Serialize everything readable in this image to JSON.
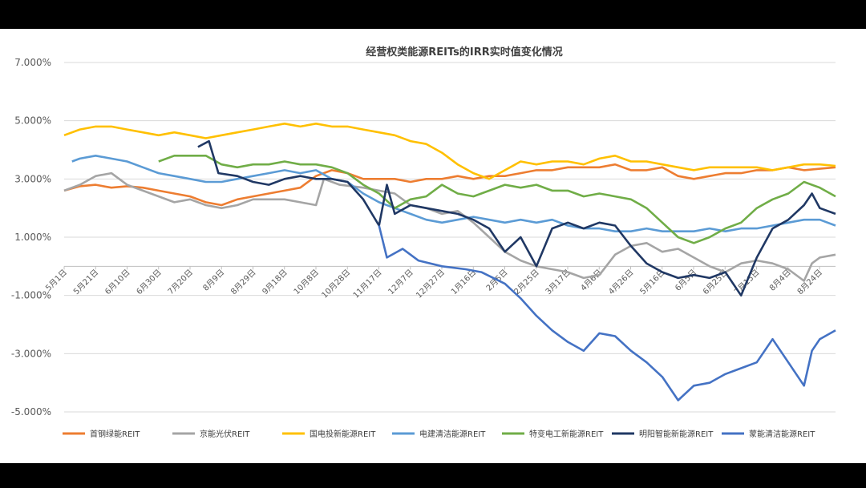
{
  "chart_data": {
    "type": "line",
    "title": "经营权类能源REITs的IRR实时值变化情况",
    "y_ticks": [
      "7.000%",
      "5.000%",
      "3.000%",
      "1.000%",
      "-1.000%",
      "-3.000%",
      "-5.000%"
    ],
    "ylim": [
      -5,
      7
    ],
    "x_ticks": [
      "5月1日",
      "5月21日",
      "6月10日",
      "6月30日",
      "7月20日",
      "8月9日",
      "8月29日",
      "9月18日",
      "10月8日",
      "10月28日",
      "11月17日",
      "12月7日",
      "12月27日",
      "1月16日",
      "2月5日",
      "2月25日",
      "3月17日",
      "4月6日",
      "4月26日",
      "5月16日",
      "6月5日",
      "6月25日",
      "7月15日",
      "8月4日",
      "8月24日"
    ],
    "x_range": [
      0,
      490
    ],
    "legend_position": "bottom",
    "series": [
      {
        "name": "首钢绿能REIT",
        "color": "#ED7D31",
        "points": [
          [
            0,
            2.6
          ],
          [
            10,
            2.75
          ],
          [
            20,
            2.8
          ],
          [
            30,
            2.7
          ],
          [
            40,
            2.75
          ],
          [
            50,
            2.7
          ],
          [
            60,
            2.6
          ],
          [
            70,
            2.5
          ],
          [
            80,
            2.4
          ],
          [
            90,
            2.2
          ],
          [
            100,
            2.1
          ],
          [
            110,
            2.3
          ],
          [
            120,
            2.4
          ],
          [
            130,
            2.5
          ],
          [
            140,
            2.6
          ],
          [
            150,
            2.7
          ],
          [
            160,
            3.1
          ],
          [
            170,
            3.3
          ],
          [
            180,
            3.2
          ],
          [
            190,
            3.0
          ],
          [
            200,
            3.0
          ],
          [
            210,
            3.0
          ],
          [
            220,
            2.9
          ],
          [
            230,
            3.0
          ],
          [
            240,
            3.0
          ],
          [
            250,
            3.1
          ],
          [
            260,
            3.0
          ],
          [
            270,
            3.1
          ],
          [
            280,
            3.1
          ],
          [
            290,
            3.2
          ],
          [
            300,
            3.3
          ],
          [
            310,
            3.3
          ],
          [
            320,
            3.4
          ],
          [
            330,
            3.4
          ],
          [
            340,
            3.4
          ],
          [
            350,
            3.5
          ],
          [
            360,
            3.3
          ],
          [
            370,
            3.3
          ],
          [
            380,
            3.4
          ],
          [
            390,
            3.1
          ],
          [
            400,
            3.0
          ],
          [
            410,
            3.1
          ],
          [
            420,
            3.2
          ],
          [
            430,
            3.2
          ],
          [
            440,
            3.3
          ],
          [
            450,
            3.3
          ],
          [
            460,
            3.4
          ],
          [
            470,
            3.3
          ],
          [
            480,
            3.35
          ],
          [
            490,
            3.4
          ]
        ]
      },
      {
        "name": "京能光伏REIT",
        "color": "#A5A5A5",
        "points": [
          [
            0,
            2.6
          ],
          [
            10,
            2.8
          ],
          [
            20,
            3.1
          ],
          [
            30,
            3.2
          ],
          [
            40,
            2.8
          ],
          [
            50,
            2.6
          ],
          [
            60,
            2.4
          ],
          [
            70,
            2.2
          ],
          [
            80,
            2.3
          ],
          [
            90,
            2.1
          ],
          [
            100,
            2.0
          ],
          [
            110,
            2.1
          ],
          [
            120,
            2.3
          ],
          [
            130,
            2.3
          ],
          [
            140,
            2.3
          ],
          [
            150,
            2.2
          ],
          [
            160,
            2.1
          ],
          [
            165,
            3.0
          ],
          [
            175,
            2.8
          ],
          [
            190,
            2.7
          ],
          [
            200,
            2.6
          ],
          [
            210,
            2.5
          ],
          [
            220,
            2.1
          ],
          [
            230,
            2.0
          ],
          [
            240,
            1.8
          ],
          [
            250,
            1.9
          ],
          [
            260,
            1.5
          ],
          [
            270,
            1.0
          ],
          [
            280,
            0.5
          ],
          [
            290,
            0.2
          ],
          [
            300,
            0.0
          ],
          [
            310,
            -0.1
          ],
          [
            320,
            -0.2
          ],
          [
            330,
            -0.4
          ],
          [
            340,
            -0.3
          ],
          [
            350,
            0.4
          ],
          [
            360,
            0.7
          ],
          [
            370,
            0.8
          ],
          [
            380,
            0.5
          ],
          [
            390,
            0.6
          ],
          [
            400,
            0.3
          ],
          [
            410,
            0.0
          ],
          [
            420,
            -0.2
          ],
          [
            430,
            0.1
          ],
          [
            440,
            0.2
          ],
          [
            450,
            0.1
          ],
          [
            460,
            -0.1
          ],
          [
            470,
            -0.5
          ],
          [
            475,
            0.1
          ],
          [
            480,
            0.3
          ],
          [
            490,
            0.4
          ]
        ]
      },
      {
        "name": "国电投新能源REIT",
        "color": "#FFC000",
        "points": [
          [
            0,
            4.5
          ],
          [
            10,
            4.7
          ],
          [
            20,
            4.8
          ],
          [
            30,
            4.8
          ],
          [
            40,
            4.7
          ],
          [
            50,
            4.6
          ],
          [
            60,
            4.5
          ],
          [
            70,
            4.6
          ],
          [
            80,
            4.5
          ],
          [
            90,
            4.4
          ],
          [
            100,
            4.5
          ],
          [
            110,
            4.6
          ],
          [
            120,
            4.7
          ],
          [
            130,
            4.8
          ],
          [
            140,
            4.9
          ],
          [
            150,
            4.8
          ],
          [
            160,
            4.9
          ],
          [
            170,
            4.8
          ],
          [
            180,
            4.8
          ],
          [
            190,
            4.7
          ],
          [
            200,
            4.6
          ],
          [
            210,
            4.5
          ],
          [
            220,
            4.3
          ],
          [
            230,
            4.2
          ],
          [
            240,
            3.9
          ],
          [
            250,
            3.5
          ],
          [
            260,
            3.2
          ],
          [
            270,
            3.0
          ],
          [
            280,
            3.3
          ],
          [
            290,
            3.6
          ],
          [
            300,
            3.5
          ],
          [
            310,
            3.6
          ],
          [
            320,
            3.6
          ],
          [
            330,
            3.5
          ],
          [
            340,
            3.7
          ],
          [
            350,
            3.8
          ],
          [
            360,
            3.6
          ],
          [
            370,
            3.6
          ],
          [
            380,
            3.5
          ],
          [
            390,
            3.4
          ],
          [
            400,
            3.3
          ],
          [
            410,
            3.4
          ],
          [
            420,
            3.4
          ],
          [
            430,
            3.4
          ],
          [
            440,
            3.4
          ],
          [
            450,
            3.3
          ],
          [
            460,
            3.4
          ],
          [
            470,
            3.5
          ],
          [
            480,
            3.5
          ],
          [
            490,
            3.45
          ]
        ]
      },
      {
        "name": "电建清洁能源REIT",
        "color": "#5B9BD5",
        "points": [
          [
            5,
            3.6
          ],
          [
            10,
            3.7
          ],
          [
            20,
            3.8
          ],
          [
            30,
            3.7
          ],
          [
            40,
            3.6
          ],
          [
            50,
            3.4
          ],
          [
            60,
            3.2
          ],
          [
            70,
            3.1
          ],
          [
            80,
            3.0
          ],
          [
            90,
            2.9
          ],
          [
            100,
            2.9
          ],
          [
            110,
            3.0
          ],
          [
            120,
            3.1
          ],
          [
            130,
            3.2
          ],
          [
            140,
            3.3
          ],
          [
            150,
            3.2
          ],
          [
            160,
            3.3
          ],
          [
            170,
            3.0
          ],
          [
            180,
            2.9
          ],
          [
            190,
            2.5
          ],
          [
            200,
            2.2
          ],
          [
            210,
            2.0
          ],
          [
            220,
            1.8
          ],
          [
            230,
            1.6
          ],
          [
            240,
            1.5
          ],
          [
            250,
            1.6
          ],
          [
            260,
            1.7
          ],
          [
            270,
            1.6
          ],
          [
            280,
            1.5
          ],
          [
            290,
            1.6
          ],
          [
            300,
            1.5
          ],
          [
            310,
            1.6
          ],
          [
            320,
            1.4
          ],
          [
            330,
            1.3
          ],
          [
            340,
            1.3
          ],
          [
            350,
            1.2
          ],
          [
            360,
            1.2
          ],
          [
            370,
            1.3
          ],
          [
            380,
            1.2
          ],
          [
            390,
            1.2
          ],
          [
            400,
            1.2
          ],
          [
            410,
            1.3
          ],
          [
            420,
            1.2
          ],
          [
            430,
            1.3
          ],
          [
            440,
            1.3
          ],
          [
            450,
            1.4
          ],
          [
            460,
            1.5
          ],
          [
            470,
            1.6
          ],
          [
            480,
            1.6
          ],
          [
            490,
            1.4
          ]
        ]
      },
      {
        "name": "特变电工新能源REIT",
        "color": "#70AD47",
        "points": [
          [
            60,
            3.6
          ],
          [
            70,
            3.8
          ],
          [
            80,
            3.8
          ],
          [
            90,
            3.8
          ],
          [
            100,
            3.5
          ],
          [
            110,
            3.4
          ],
          [
            120,
            3.5
          ],
          [
            130,
            3.5
          ],
          [
            140,
            3.6
          ],
          [
            150,
            3.5
          ],
          [
            160,
            3.5
          ],
          [
            170,
            3.4
          ],
          [
            180,
            3.2
          ],
          [
            190,
            2.8
          ],
          [
            200,
            2.5
          ],
          [
            210,
            2.0
          ],
          [
            220,
            2.3
          ],
          [
            230,
            2.4
          ],
          [
            240,
            2.8
          ],
          [
            250,
            2.5
          ],
          [
            260,
            2.4
          ],
          [
            270,
            2.6
          ],
          [
            280,
            2.8
          ],
          [
            290,
            2.7
          ],
          [
            300,
            2.8
          ],
          [
            310,
            2.6
          ],
          [
            320,
            2.6
          ],
          [
            330,
            2.4
          ],
          [
            340,
            2.5
          ],
          [
            350,
            2.4
          ],
          [
            360,
            2.3
          ],
          [
            370,
            2.0
          ],
          [
            380,
            1.5
          ],
          [
            390,
            1.0
          ],
          [
            400,
            0.8
          ],
          [
            410,
            1.0
          ],
          [
            420,
            1.3
          ],
          [
            430,
            1.5
          ],
          [
            440,
            2.0
          ],
          [
            450,
            2.3
          ],
          [
            460,
            2.5
          ],
          [
            470,
            2.9
          ],
          [
            480,
            2.7
          ],
          [
            490,
            2.4
          ]
        ]
      },
      {
        "name": "明阳智能新能源REIT",
        "color": "#203864",
        "points": [
          [
            85,
            4.1
          ],
          [
            92,
            4.3
          ],
          [
            98,
            3.2
          ],
          [
            110,
            3.1
          ],
          [
            120,
            2.9
          ],
          [
            130,
            2.8
          ],
          [
            140,
            3.0
          ],
          [
            150,
            3.1
          ],
          [
            160,
            3.0
          ],
          [
            170,
            3.0
          ],
          [
            180,
            2.9
          ],
          [
            190,
            2.3
          ],
          [
            200,
            1.4
          ],
          [
            205,
            2.8
          ],
          [
            210,
            1.8
          ],
          [
            220,
            2.1
          ],
          [
            230,
            2.0
          ],
          [
            240,
            1.9
          ],
          [
            250,
            1.8
          ],
          [
            260,
            1.6
          ],
          [
            270,
            1.3
          ],
          [
            280,
            0.5
          ],
          [
            290,
            1.0
          ],
          [
            300,
            0.0
          ],
          [
            310,
            1.3
          ],
          [
            320,
            1.5
          ],
          [
            330,
            1.3
          ],
          [
            340,
            1.5
          ],
          [
            350,
            1.4
          ],
          [
            360,
            0.7
          ],
          [
            370,
            0.1
          ],
          [
            380,
            -0.2
          ],
          [
            390,
            -0.4
          ],
          [
            400,
            -0.3
          ],
          [
            410,
            -0.4
          ],
          [
            420,
            -0.2
          ],
          [
            430,
            -1.0
          ],
          [
            440,
            0.3
          ],
          [
            450,
            1.3
          ],
          [
            460,
            1.6
          ],
          [
            470,
            2.1
          ],
          [
            475,
            2.5
          ],
          [
            480,
            2.0
          ],
          [
            490,
            1.8
          ]
        ]
      },
      {
        "name": "蒙能清洁能源REIT",
        "color": "#4472C4",
        "points": [
          [
            200,
            1.4
          ],
          [
            205,
            0.3
          ],
          [
            215,
            0.6
          ],
          [
            225,
            0.2
          ],
          [
            240,
            0.0
          ],
          [
            255,
            -0.1
          ],
          [
            265,
            -0.2
          ],
          [
            280,
            -0.6
          ],
          [
            290,
            -1.1
          ],
          [
            300,
            -1.7
          ],
          [
            310,
            -2.2
          ],
          [
            320,
            -2.6
          ],
          [
            330,
            -2.9
          ],
          [
            340,
            -2.3
          ],
          [
            350,
            -2.4
          ],
          [
            360,
            -2.9
          ],
          [
            370,
            -3.3
          ],
          [
            380,
            -3.8
          ],
          [
            390,
            -4.6
          ],
          [
            400,
            -4.1
          ],
          [
            410,
            -4.0
          ],
          [
            420,
            -3.7
          ],
          [
            430,
            -3.5
          ],
          [
            440,
            -3.3
          ],
          [
            450,
            -2.5
          ],
          [
            460,
            -3.3
          ],
          [
            470,
            -4.1
          ],
          [
            475,
            -2.9
          ],
          [
            480,
            -2.5
          ],
          [
            490,
            -2.2
          ]
        ]
      }
    ]
  }
}
